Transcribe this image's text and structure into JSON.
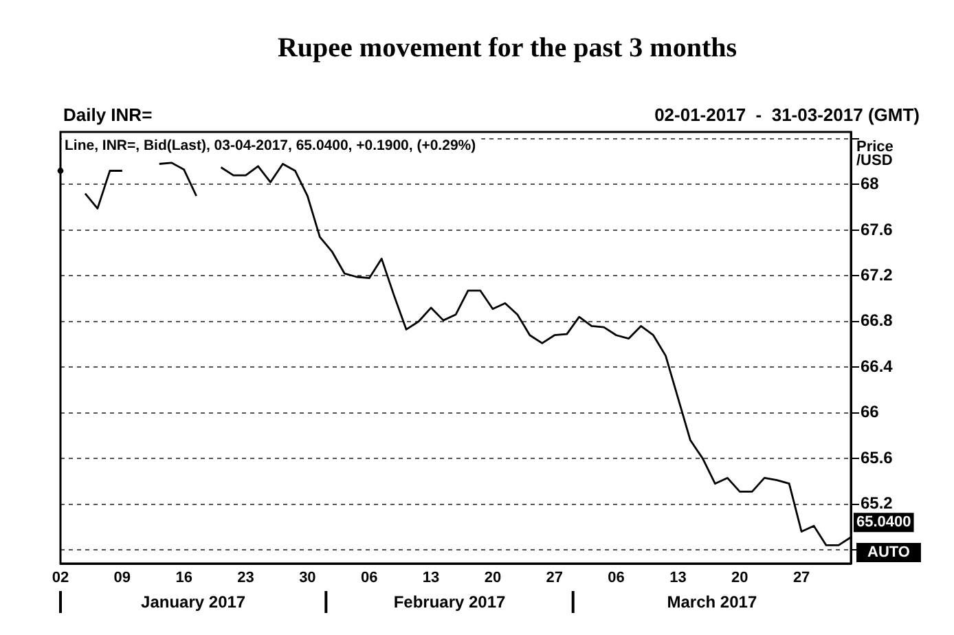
{
  "chart_data": {
    "type": "line",
    "title": "Rupee movement for the past 3 months",
    "subtitle": "Daily INR=",
    "ylabel": "Price /USD",
    "categories": [
      "02",
      null,
      null,
      null,
      null,
      "09",
      null,
      null,
      null,
      null,
      "16",
      null,
      null,
      null,
      null,
      "23",
      null,
      null,
      null,
      null,
      "30",
      null,
      null,
      null,
      null,
      "06",
      null,
      null,
      null,
      null,
      "13",
      null,
      null,
      null,
      null,
      "20",
      null,
      null,
      null,
      null,
      "27",
      null,
      null,
      null,
      null,
      "06",
      null,
      null,
      null,
      null,
      "13",
      null,
      null,
      null,
      null,
      "20",
      null,
      null,
      null,
      null,
      "27",
      null,
      null,
      null,
      null
    ],
    "series": [
      {
        "color": "#000000",
        "values": [
          68.12,
          null,
          67.92,
          67.79,
          68.12,
          68.12,
          null,
          null,
          68.18,
          68.19,
          68.13,
          67.9,
          null,
          68.15,
          68.08,
          68.08,
          68.16,
          68.02,
          68.18,
          68.12,
          67.9,
          67.54,
          67.41,
          67.22,
          67.19,
          67.18,
          67.35,
          67.03,
          66.73,
          66.8,
          66.92,
          66.81,
          66.86,
          67.07,
          67.07,
          66.91,
          66.96,
          66.86,
          66.68,
          66.61,
          66.68,
          66.69,
          66.84,
          66.76,
          66.75,
          66.68,
          66.65,
          66.76,
          66.68,
          66.5,
          66.13,
          65.76,
          65.6,
          65.38,
          65.43,
          65.31,
          65.31,
          65.43,
          65.41,
          65.38,
          64.96,
          65.01,
          64.84,
          64.84,
          64.91
        ]
      }
    ],
    "ylim": [
      64.68,
      68.46
    ],
    "yticks": [
      {
        "value": 64.8,
        "label": null
      },
      65.2,
      65.6,
      66,
      66.4,
      66.8,
      67.2,
      67.6,
      68,
      {
        "value": 68.4,
        "label": null
      }
    ],
    "grid": "y",
    "marker": "none",
    "line_style": "solid",
    "legend": false,
    "annotations": [
      "02-01-2017  -  31-03-2017 (GMT)",
      "Line, INR=, Bid(Last), 03-04-2017, 65.0400, +0.1900, (+0.29%)",
      {
        "text": "65.0400",
        "y": 65.04
      },
      "AUTO",
      "January 2017",
      "February 2017",
      "March 2017"
    ]
  }
}
